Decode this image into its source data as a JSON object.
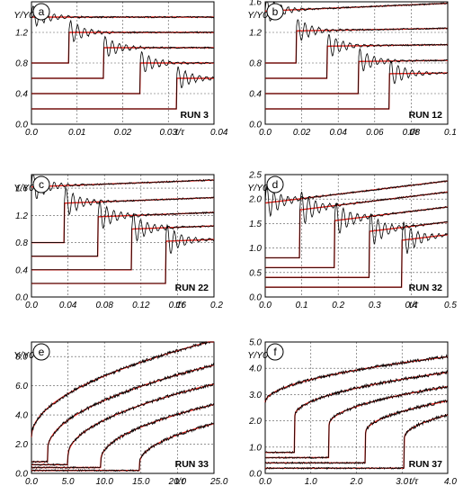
{
  "chart_data": [
    {
      "type": "line",
      "panel_label": "a",
      "run_label": "RUN 3",
      "ylabel": "Y/Y0",
      "xlabel": "t/τ",
      "xlim": [
        0.0,
        0.04
      ],
      "ylim": [
        0.0,
        1.6
      ],
      "xticks": [
        0.0,
        0.01,
        0.02,
        0.03,
        0.04
      ],
      "xtick_labels": [
        "0.0",
        "0.01",
        "0.02",
        "0.03",
        "0.04"
      ],
      "yticks": [
        0.0,
        0.4,
        0.8,
        1.2
      ],
      "ytick_labels": [
        "0.0",
        "0.4",
        "0.8",
        "1.2"
      ],
      "grid": true,
      "osc": true,
      "series": [
        {
          "color": "#e8231c",
          "x_step": 0.0,
          "y0": 1.0,
          "y1": 1.4,
          "slope": 0.0
        },
        {
          "color": "#e8231c",
          "x_step": 0.0082,
          "y0": 0.8,
          "y1": 1.2,
          "slope": 0.0
        },
        {
          "color": "#e8231c",
          "x_step": 0.0158,
          "y0": 0.6,
          "y1": 1.0,
          "slope": 0.0
        },
        {
          "color": "#e8231c",
          "x_step": 0.0238,
          "y0": 0.4,
          "y1": 0.8,
          "slope": 0.0
        },
        {
          "color": "#e8231c",
          "x_step": 0.0318,
          "y0": 0.2,
          "y1": 0.6,
          "slope": 0.0
        }
      ]
    },
    {
      "type": "line",
      "panel_label": "b",
      "run_label": "RUN 12",
      "ylabel": "Y/Y0",
      "xlabel": "t/τ",
      "xlim": [
        0.0,
        0.1
      ],
      "ylim": [
        0.0,
        1.6
      ],
      "xticks": [
        0.0,
        0.02,
        0.04,
        0.06,
        0.08,
        0.1
      ],
      "xtick_labels": [
        "0.0",
        "0.02",
        "0.04",
        "0.06",
        "0.08",
        "0.1"
      ],
      "yticks": [
        0.0,
        0.4,
        0.8,
        1.2,
        1.6
      ],
      "ytick_labels": [
        "0.0",
        "0.4",
        "0.8",
        "1.2",
        "1.6"
      ],
      "grid": true,
      "osc": true,
      "series": [
        {
          "color": "#e8231c",
          "x_step": 0.0,
          "y0": 1.0,
          "y1": 1.48,
          "slope": 1.0
        },
        {
          "color": "#e8231c",
          "x_step": 0.017,
          "y0": 0.8,
          "y1": 1.22,
          "slope": 0.4
        },
        {
          "color": "#e8231c",
          "x_step": 0.034,
          "y0": 0.6,
          "y1": 1.02,
          "slope": 0.3
        },
        {
          "color": "#e8231c",
          "x_step": 0.051,
          "y0": 0.4,
          "y1": 0.82,
          "slope": 0.3
        },
        {
          "color": "#e8231c",
          "x_step": 0.068,
          "y0": 0.2,
          "y1": 0.66,
          "slope": 0.3
        }
      ]
    },
    {
      "type": "line",
      "panel_label": "c",
      "run_label": "RUN 22",
      "ylabel": "Y/Y0",
      "xlabel": "t/τ",
      "xlim": [
        0.0,
        0.2
      ],
      "ylim": [
        0.0,
        1.8
      ],
      "xticks": [
        0.0,
        0.04,
        0.08,
        0.12,
        0.16,
        0.2
      ],
      "xtick_labels": [
        "0.0",
        "0.04",
        "0.08",
        "0.12",
        "0.16",
        "0.2"
      ],
      "yticks": [
        0.0,
        0.4,
        0.8,
        1.2,
        1.6
      ],
      "ytick_labels": [
        "0.0",
        "0.4",
        "0.8",
        "1.2",
        "1.6"
      ],
      "grid": true,
      "osc": true,
      "series": [
        {
          "color": "#e8231c",
          "x_step": 0.0,
          "y0": 1.0,
          "y1": 1.62,
          "slope": 0.5
        },
        {
          "color": "#e8231c",
          "x_step": 0.036,
          "y0": 0.8,
          "y1": 1.38,
          "slope": 0.5
        },
        {
          "color": "#e8231c",
          "x_step": 0.073,
          "y0": 0.6,
          "y1": 1.18,
          "slope": 0.5
        },
        {
          "color": "#e8231c",
          "x_step": 0.11,
          "y0": 0.4,
          "y1": 1.0,
          "slope": 0.5
        },
        {
          "color": "#e8231c",
          "x_step": 0.147,
          "y0": 0.2,
          "y1": 0.82,
          "slope": 0.5
        }
      ]
    },
    {
      "type": "line",
      "panel_label": "d",
      "run_label": "RUN 32",
      "ylabel": "Y/Y0",
      "xlabel": "t/τ",
      "xlim": [
        0.0,
        0.5
      ],
      "ylim": [
        0.0,
        2.5
      ],
      "xticks": [
        0.0,
        0.1,
        0.2,
        0.3,
        0.4,
        0.5
      ],
      "xtick_labels": [
        "0.0",
        "0.1",
        "0.2",
        "0.3",
        "0.4",
        "0.5"
      ],
      "yticks": [
        0.0,
        0.5,
        1.0,
        1.5,
        2.0,
        2.5
      ],
      "ytick_labels": [
        "0.0",
        "0.5",
        "1.0",
        "1.5",
        "2.0",
        "2.5"
      ],
      "grid": true,
      "osc": true,
      "series": [
        {
          "color": "#e8231c",
          "x_step": 0.0,
          "y0": 1.0,
          "y1": 1.92,
          "slope": 0.9
        },
        {
          "color": "#e8231c",
          "x_step": 0.095,
          "y0": 0.8,
          "y1": 1.78,
          "slope": 0.9
        },
        {
          "color": "#e8231c",
          "x_step": 0.19,
          "y0": 0.6,
          "y1": 1.56,
          "slope": 0.9
        },
        {
          "color": "#e8231c",
          "x_step": 0.285,
          "y0": 0.4,
          "y1": 1.34,
          "slope": 0.9
        },
        {
          "color": "#e8231c",
          "x_step": 0.375,
          "y0": 0.2,
          "y1": 1.16,
          "slope": 0.9
        }
      ]
    },
    {
      "type": "line",
      "panel_label": "e",
      "run_label": "RUN 33",
      "ylabel": "Y/Y0",
      "xlabel": "t/τ",
      "xlim": [
        0.0,
        25.0
      ],
      "ylim": [
        0.0,
        9.0
      ],
      "xticks": [
        0.0,
        5.0,
        10.0,
        15.0,
        20.0,
        25.0
      ],
      "xtick_labels": [
        "0.0",
        "5.0",
        "10.0",
        "15.0",
        "20.0",
        "25.0"
      ],
      "yticks": [
        0.0,
        2.0,
        4.0,
        6.0,
        8.0
      ],
      "ytick_labels": [
        "0.0",
        "2.0",
        "4.0",
        "6.0",
        "8.0"
      ],
      "grid": true,
      "osc": false,
      "series": [
        {
          "color": "#e8231c",
          "x_step": 0.0,
          "y0": 1.0,
          "y1": 2.5,
          "k": 1.32
        },
        {
          "color": "#e8231c",
          "x_step": 2.2,
          "y0": 0.8,
          "y1": 1.6,
          "k": 1.22
        },
        {
          "color": "#e8231c",
          "x_step": 5.0,
          "y0": 0.6,
          "y1": 1.2,
          "k": 1.1
        },
        {
          "color": "#e8231c",
          "x_step": 9.5,
          "y0": 0.4,
          "y1": 0.9,
          "k": 0.97
        },
        {
          "color": "#e8231c",
          "x_step": 14.8,
          "y0": 0.2,
          "y1": 0.7,
          "k": 0.85
        }
      ]
    },
    {
      "type": "line",
      "panel_label": "f",
      "run_label": "RUN 37",
      "ylabel": "Y/Y0",
      "xlabel": "t/τ",
      "xlim": [
        0.0,
        4.0
      ],
      "ylim": [
        0.0,
        5.0
      ],
      "xticks": [
        0.0,
        1.0,
        2.0,
        3.0,
        4.0
      ],
      "xtick_labels": [
        "0.0",
        "1.0",
        "2.0",
        "3.0",
        "4.0"
      ],
      "yticks": [
        0.0,
        1.0,
        2.0,
        3.0,
        4.0,
        5.0
      ],
      "ytick_labels": [
        "0.0",
        "1.0",
        "2.0",
        "3.0",
        "4.0",
        "5.0"
      ],
      "grid": true,
      "osc": false,
      "series": [
        {
          "color": "#e8231c",
          "x_step": 0.0,
          "y0": 1.0,
          "y1": 2.7,
          "k": 0.87
        },
        {
          "color": "#e8231c",
          "x_step": 0.65,
          "y0": 0.8,
          "y1": 2.2,
          "k": 0.9
        },
        {
          "color": "#e8231c",
          "x_step": 1.4,
          "y0": 0.6,
          "y1": 1.85,
          "k": 0.9
        },
        {
          "color": "#e8231c",
          "x_step": 2.2,
          "y0": 0.4,
          "y1": 1.55,
          "k": 0.9
        },
        {
          "color": "#e8231c",
          "x_step": 3.05,
          "y0": 0.2,
          "y1": 1.35,
          "k": 0.9
        }
      ]
    }
  ]
}
